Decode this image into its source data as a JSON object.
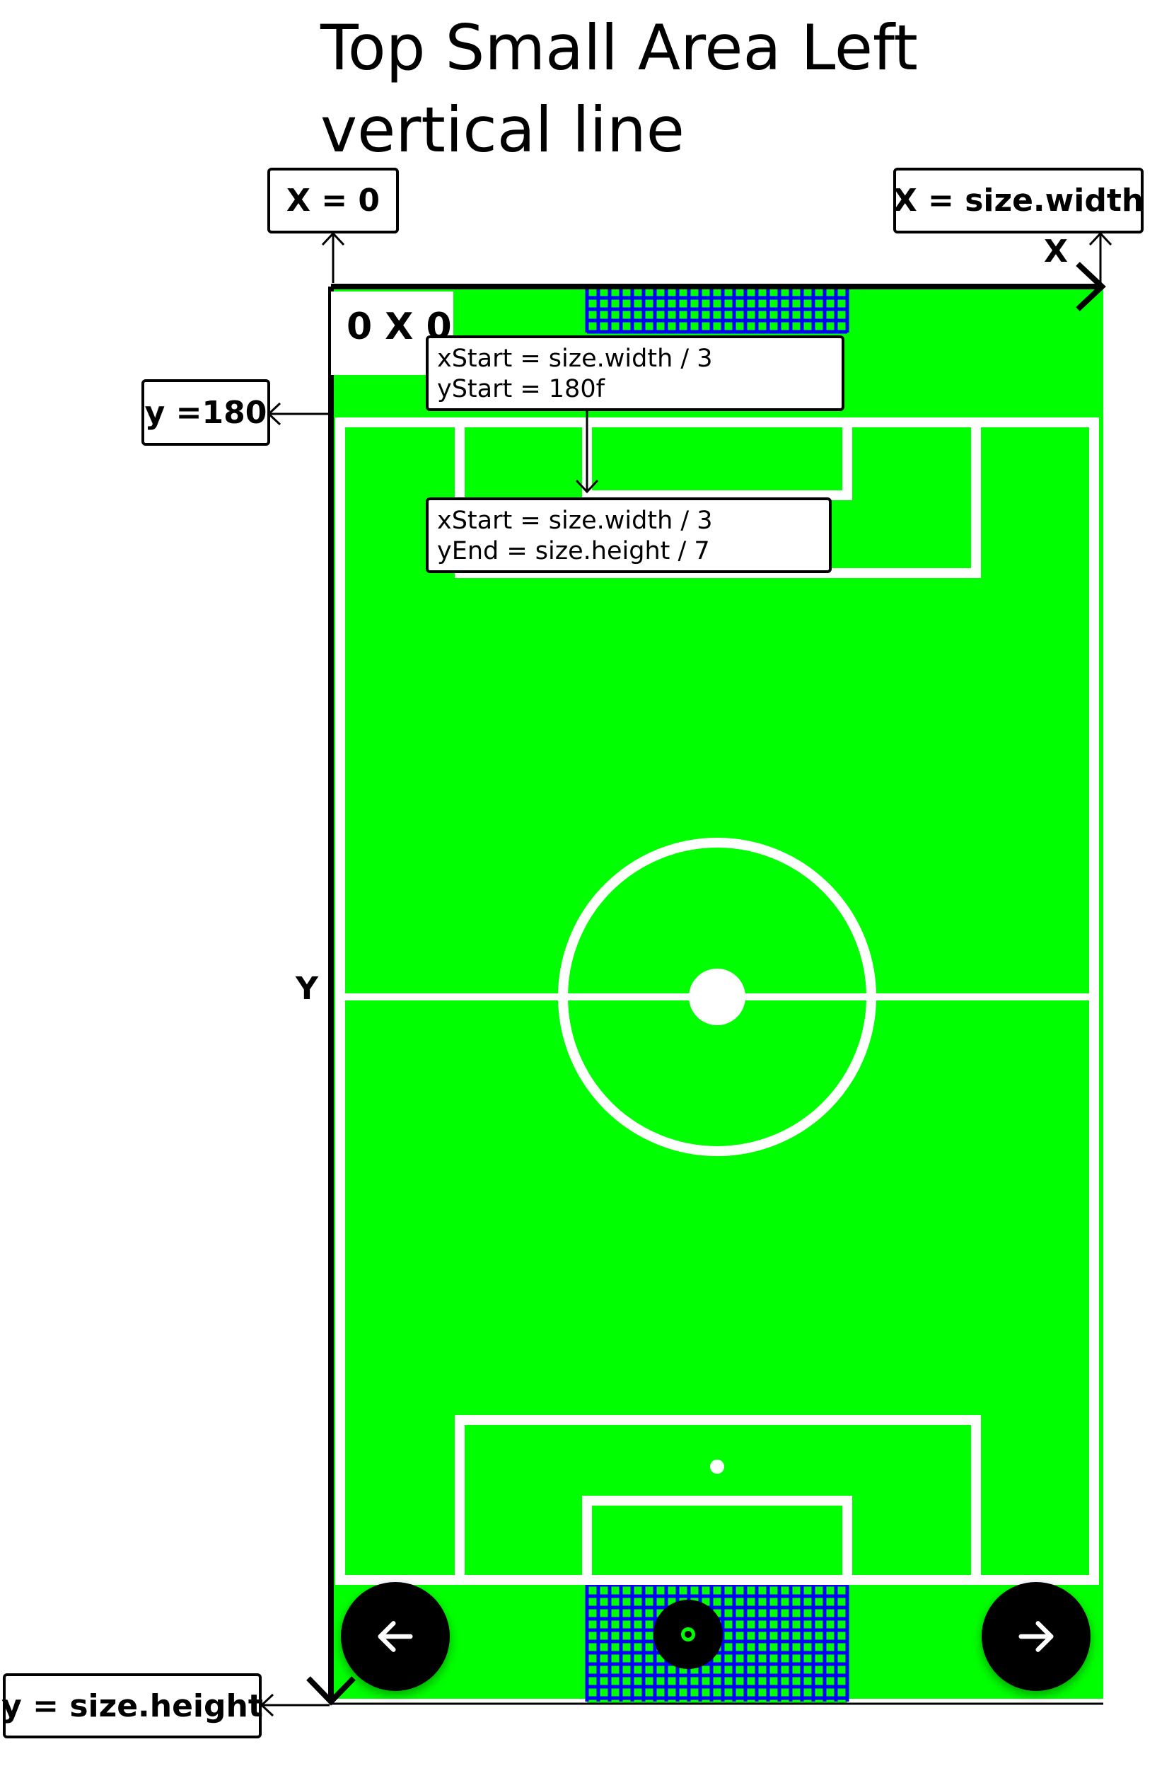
{
  "title": "Top Small Area Left\nvertical line",
  "labels": {
    "x0": "X = 0",
    "xw": "X = size.width",
    "y180": "y =180",
    "yh": "y = size.height",
    "x_axis": "X",
    "y_axis": "Y",
    "origin": "0 X 0"
  },
  "annotations": {
    "start_line1": "xStart = size.width / 3",
    "start_line2": "yStart = 180f",
    "end_line1": "xStart = size.width / 3",
    "end_line2": "yEnd = size.height / 7"
  },
  "colors": {
    "pitch": "#00ff00",
    "lines": "#ffffff",
    "net": "#0000ff",
    "axis": "#000000"
  },
  "buttons": {
    "prev_icon": "arrow-left-icon",
    "next_icon": "arrow-right-icon",
    "center_icon": "record-icon"
  }
}
